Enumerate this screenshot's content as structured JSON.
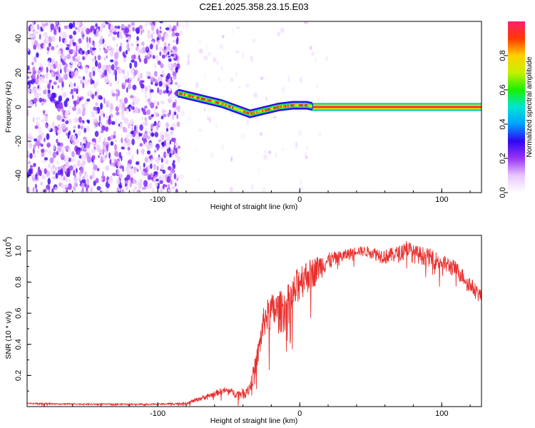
{
  "figure": {
    "title": "C2E1.2025.358.23.15.E03"
  },
  "chart_data": [
    {
      "type": "heatmap",
      "title": "C2E1.2025.358.23.15.E03",
      "xlabel": "Height of straight line (km)",
      "ylabel": "Frequency (Hz)",
      "xlim": [
        -192,
        128
      ],
      "ylim": [
        -50,
        50
      ],
      "x_ticks": [
        -100,
        0,
        100
      ],
      "y_ticks": [
        -40,
        -20,
        0,
        20,
        40
      ],
      "colorbar": {
        "label": "Normalized spectral amplitude",
        "range": [
          0,
          1
        ],
        "ticks": [
          0.0,
          0.2,
          0.4,
          0.6,
          0.8
        ],
        "tick_labels": [
          "0.0",
          "0.2",
          "0.4",
          "0.6",
          "0.8"
        ],
        "colors": [
          "#ffffff",
          "#e9c6ff",
          "#9a34f5",
          "#2f07f3",
          "#00a0ff",
          "#00e6d2",
          "#18f000",
          "#c6f000",
          "#ffd000",
          "#ff3800",
          "#ff1f6e"
        ]
      },
      "regions": [
        {
          "name": "noise",
          "x_range": [
            -192,
            -85
          ],
          "y_range": [
            -50,
            50
          ],
          "amplitude": [
            0.05,
            0.3
          ]
        },
        {
          "name": "sparse-noise",
          "x_range": [
            -85,
            20
          ],
          "y_range": [
            -50,
            50
          ],
          "amplitude": [
            0.02,
            0.12
          ]
        },
        {
          "name": "constant-tone",
          "x_range": [
            8,
            128
          ],
          "y_range": [
            -1,
            1
          ],
          "amplitude": 0.95
        }
      ],
      "ridge": {
        "x": [
          -85,
          -80,
          -75,
          -70,
          -65,
          -60,
          -55,
          -50,
          -45,
          -40,
          -35,
          -30,
          -25,
          -20,
          -15,
          -10,
          -5,
          0,
          5,
          8
        ],
        "y": [
          8,
          7,
          6,
          5,
          4,
          3,
          2,
          0.5,
          -1,
          -2.5,
          -4,
          -3,
          -2,
          -1,
          0,
          0.5,
          1,
          1,
          1,
          0.5
        ]
      }
    },
    {
      "type": "line",
      "xlabel": "Height of straight line (km)",
      "ylabel": "SNR (10 * v/v)",
      "y_multiplier": "(x10",
      "y_multiplier_exp": "4",
      "y_multiplier_close": ")",
      "xlim": [
        -192,
        128
      ],
      "ylim": [
        0,
        1.1
      ],
      "x_ticks": [
        -100,
        0,
        100
      ],
      "y_ticks": [
        0.2,
        0.4,
        0.6,
        0.8,
        1.0
      ],
      "y_tick_labels": [
        "0.2",
        "0.4",
        "0.6",
        "0.8",
        "1.0"
      ],
      "series": [
        {
          "name": "SNR",
          "color": "#e8302e",
          "envelope_x": [
            -192,
            -150,
            -100,
            -80,
            -70,
            -60,
            -55,
            -50,
            -45,
            -40,
            -35,
            -30,
            -25,
            -20,
            -15,
            -10,
            -5,
            0,
            5,
            10,
            15,
            20,
            30,
            40,
            50,
            60,
            70,
            75,
            80,
            90,
            100,
            110,
            120,
            128
          ],
          "envelope_y": [
            0.02,
            0.015,
            0.015,
            0.02,
            0.05,
            0.08,
            0.1,
            0.1,
            0.08,
            0.08,
            0.12,
            0.3,
            0.55,
            0.6,
            0.6,
            0.62,
            0.68,
            0.8,
            0.83,
            0.86,
            0.9,
            0.93,
            0.96,
            1.0,
            0.99,
            0.96,
            0.98,
            1.02,
            0.98,
            0.96,
            0.92,
            0.88,
            0.78,
            0.7
          ],
          "noise_amp_x": [
            -192,
            -100,
            -80,
            -60,
            -45,
            -35,
            -25,
            -15,
            -5,
            0,
            10,
            20,
            40,
            60,
            80,
            100,
            128
          ],
          "noise_amp_y": [
            0.01,
            0.01,
            0.02,
            0.04,
            0.05,
            0.1,
            0.22,
            0.28,
            0.3,
            0.25,
            0.2,
            0.12,
            0.06,
            0.1,
            0.12,
            0.12,
            0.1
          ]
        }
      ]
    }
  ]
}
